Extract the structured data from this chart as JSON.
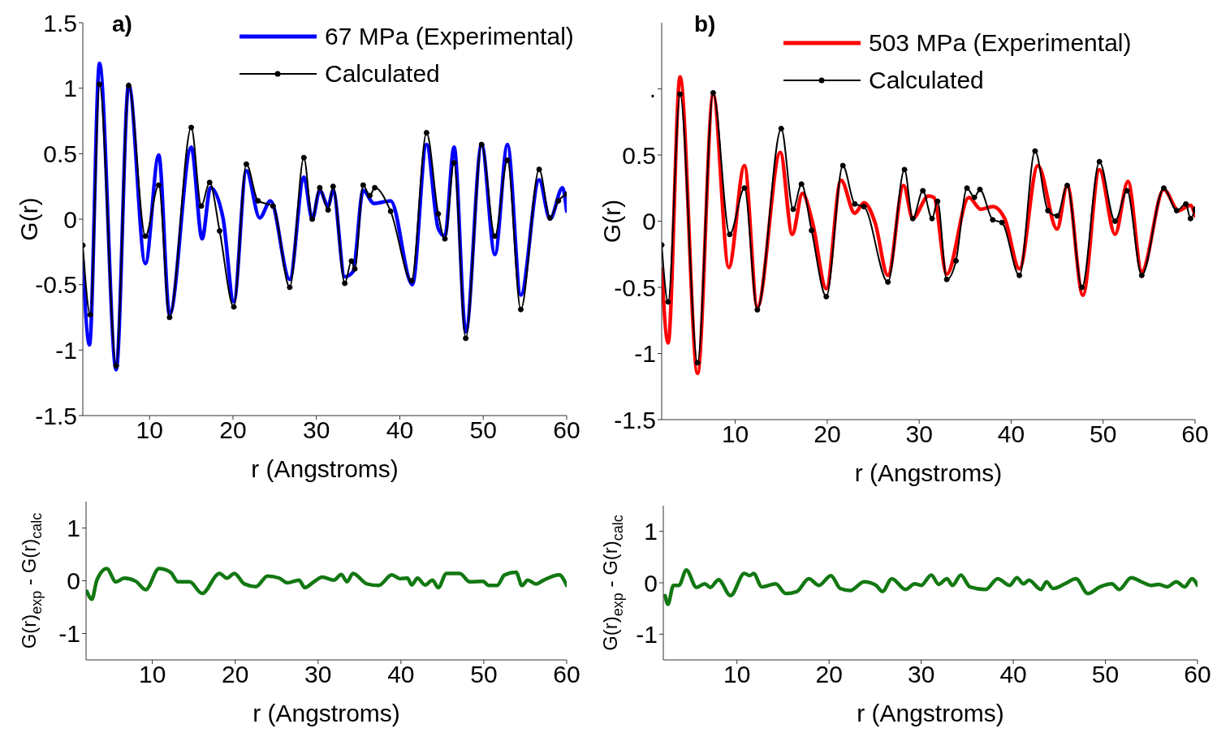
{
  "chart_data": [
    {
      "type": "line",
      "annotations": [
        "a)"
      ],
      "xlabel": "r (Angstroms)",
      "ylabel": "G(r)",
      "xlim": [
        2,
        60
      ],
      "xticks": [
        10,
        20,
        30,
        40,
        50,
        60
      ],
      "ylim": [
        -1.5,
        1.5
      ],
      "yticks": [
        -1.5,
        -1,
        -0.5,
        0,
        0.5,
        1,
        1.5
      ],
      "legend": "top right",
      "grid": false,
      "series": [
        {
          "name": "67 MPa (Experimental)",
          "color": "#0000ff",
          "marker": "none",
          "x": [
            2,
            2.8,
            4.0,
            6.0,
            7.5,
            9.5,
            11.1,
            12.4,
            15.0,
            16.3,
            17.3,
            18.8,
            20.1,
            21.6,
            23.2,
            24.5,
            26.8,
            28.5,
            29.5,
            30.4,
            31.4,
            32.0,
            33.4,
            34.4,
            35.6,
            36.9,
            38.9,
            41.5,
            43.2,
            44.6,
            45.4,
            46.5,
            47.9,
            49.8,
            51.4,
            52.9,
            54.5,
            56.7,
            58.0,
            59.5,
            60
          ],
          "values": [
            -0.32,
            -0.96,
            1.19,
            -1.15,
            1.03,
            -0.34,
            0.49,
            -0.73,
            0.55,
            -0.15,
            0.24,
            0.01,
            -0.63,
            0.37,
            0.01,
            0.14,
            -0.46,
            0.32,
            0.0,
            0.22,
            0.1,
            0.22,
            -0.44,
            -0.4,
            0.22,
            0.12,
            0.14,
            -0.5,
            0.57,
            -0.07,
            -0.13,
            0.55,
            -0.86,
            0.57,
            -0.27,
            0.57,
            -0.58,
            0.3,
            0.0,
            0.24,
            0.06
          ]
        },
        {
          "name": "Calculated",
          "color": "#000000",
          "marker": "circle",
          "x": [
            2,
            2.9,
            4.0,
            6.0,
            7.5,
            9.5,
            11.1,
            12.4,
            15.0,
            16.2,
            17.2,
            18.4,
            20.1,
            21.6,
            23.0,
            24.8,
            26.8,
            28.5,
            29.5,
            30.4,
            31.4,
            32.0,
            33.4,
            34.2,
            34.6,
            35.6,
            36.4,
            37.0,
            38.9,
            41.4,
            43.2,
            44.6,
            45.4,
            46.5,
            47.9,
            49.8,
            51.4,
            52.9,
            54.5,
            56.7,
            58.0,
            59.0,
            60
          ],
          "values": [
            -0.2,
            -0.73,
            1.03,
            -1.12,
            1.02,
            -0.13,
            0.26,
            -0.75,
            0.7,
            0.1,
            0.28,
            -0.09,
            -0.67,
            0.42,
            0.14,
            0.1,
            -0.52,
            0.47,
            0.0,
            0.24,
            0.07,
            0.25,
            -0.49,
            -0.32,
            -0.38,
            0.26,
            0.18,
            0.24,
            0.06,
            -0.47,
            0.66,
            0.04,
            -0.15,
            0.43,
            -0.91,
            0.57,
            -0.13,
            0.45,
            -0.69,
            0.38,
            0.01,
            0.14,
            0.19
          ]
        }
      ]
    },
    {
      "type": "line",
      "annotations": [
        "b)"
      ],
      "xlabel": "r (Angstroms)",
      "ylabel": "G(r)",
      "xlim": [
        2,
        60
      ],
      "xticks": [
        10,
        20,
        30,
        40,
        50,
        60
      ],
      "ylim": [
        -1.5,
        1.5
      ],
      "yticks": [
        -1.5,
        -1,
        -0.5,
        0,
        0.5,
        {
          "value": 1,
          "label": "."
        }
      ],
      "legend": "top right",
      "grid": false,
      "series": [
        {
          "name": "503 MPa (Experimental)",
          "color": "#ff0000",
          "marker": "none",
          "x": [
            2.0,
            2.7,
            4.0,
            5.9,
            7.6,
            9.3,
            11.0,
            12.4,
            14.9,
            16.2,
            17.3,
            18.4,
            19.9,
            21.5,
            23.0,
            24.0,
            25.2,
            26.6,
            28.3,
            29.3,
            31.0,
            31.6,
            33.0,
            35.4,
            36.7,
            38.0,
            39.3,
            40.9,
            42.9,
            45.0,
            46.1,
            47.8,
            49.6,
            51.3,
            52.7,
            54.2,
            56.6,
            58.2,
            59.5,
            60
          ],
          "values": [
            -0.36,
            -0.92,
            1.09,
            -1.15,
            0.96,
            -0.35,
            0.42,
            -0.65,
            0.52,
            -0.1,
            0.21,
            -0.01,
            -0.51,
            0.31,
            0.06,
            0.14,
            -0.01,
            -0.41,
            0.27,
            0.02,
            0.19,
            0.18,
            -0.4,
            0.18,
            0.09,
            0.11,
            0.02,
            -0.36,
            0.42,
            -0.06,
            0.27,
            -0.56,
            0.39,
            -0.1,
            0.3,
            -0.38,
            0.24,
            0.08,
            0.12,
            0.04
          ]
        },
        {
          "name": "Calculated",
          "color": "#000000",
          "marker": "circle",
          "x": [
            2.0,
            2.7,
            4.0,
            5.9,
            7.6,
            9.4,
            11.0,
            12.4,
            15.0,
            16.3,
            17.2,
            18.3,
            19.9,
            21.7,
            23.0,
            24.0,
            26.6,
            28.4,
            29.3,
            30.4,
            31.4,
            32.0,
            33.0,
            34.0,
            35.2,
            36.0,
            36.6,
            38.0,
            39.0,
            40.9,
            42.6,
            44.0,
            45.0,
            46.1,
            47.7,
            49.6,
            51.3,
            52.6,
            54.2,
            56.6,
            58.0,
            59.0,
            59.5,
            60
          ],
          "values": [
            -0.18,
            -0.61,
            0.96,
            -1.07,
            0.97,
            -0.1,
            0.25,
            -0.67,
            0.7,
            0.09,
            0.28,
            -0.07,
            -0.57,
            0.42,
            0.13,
            0.11,
            -0.46,
            0.39,
            0.02,
            0.23,
            0.02,
            0.15,
            -0.44,
            -0.3,
            0.25,
            0.18,
            0.24,
            0.01,
            -0.01,
            -0.41,
            0.53,
            0.08,
            0.04,
            0.27,
            -0.5,
            0.45,
            0.0,
            0.23,
            -0.41,
            0.25,
            0.08,
            0.13,
            0.02,
            0.09
          ]
        }
      ]
    },
    {
      "type": "line",
      "xlabel": "r (Angstroms)",
      "ylabel": "G(r)$_{exp}$ - G(r)$_{calc}$",
      "xlim": [
        2,
        60
      ],
      "xticks": [
        10,
        20,
        30,
        40,
        50,
        60
      ],
      "ylim": [
        -1.5,
        1.5
      ],
      "yticks": [
        -1,
        0,
        1
      ],
      "grid": false,
      "series": [
        {
          "color": "#127812",
          "marker": "none",
          "x": [
            2.1,
            2.7,
            3.3,
            4.5,
            5.6,
            6.6,
            8.0,
            9.2,
            10.8,
            12.2,
            13.1,
            14.5,
            16.0,
            18.1,
            19.0,
            19.9,
            21.1,
            22.5,
            23.9,
            25.3,
            26.3,
            27.7,
            28.4,
            29.5,
            30.5,
            31.9,
            32.8,
            33.5,
            34.2,
            35.9,
            37.3,
            38.9,
            39.9,
            40.8,
            41.3,
            42.0,
            42.9,
            43.8,
            44.5,
            45.5,
            47.1,
            48.3,
            49.9,
            50.6,
            51.6,
            52.5,
            53.9,
            54.6,
            55.3,
            56.3,
            57.2,
            59.1,
            60
          ],
          "values": [
            -0.2,
            -0.35,
            0.01,
            0.23,
            -0.02,
            0.05,
            -0.01,
            -0.17,
            0.23,
            0.16,
            -0.02,
            -0.02,
            -0.24,
            0.14,
            0.05,
            0.14,
            -0.06,
            -0.11,
            0.09,
            0.05,
            -0.04,
            0.01,
            -0.13,
            -0.02,
            0.07,
            0.01,
            0.12,
            -0.02,
            0.14,
            -0.06,
            -0.09,
            0.11,
            0.04,
            0.05,
            -0.08,
            0.05,
            -0.08,
            0.01,
            -0.13,
            0.14,
            0.14,
            -0.02,
            -0.01,
            -0.09,
            -0.09,
            0.11,
            0.16,
            -0.09,
            0.01,
            -0.06,
            0.01,
            0.11,
            -0.09
          ]
        }
      ]
    },
    {
      "type": "line",
      "xlabel": "r (Angstroms)",
      "ylabel": "G(r)$_{exp}$ - G(r)$_{calc}$",
      "xlim": [
        2,
        60
      ],
      "xticks": [
        10,
        20,
        30,
        40,
        50,
        60
      ],
      "ylim": [
        -1.5,
        1.5
      ],
      "yticks": [
        -1,
        0,
        1
      ],
      "grid": false,
      "series": [
        {
          "color": "#127812",
          "marker": "none",
          "x": [
            2.2,
            2.5,
            3.1,
            3.7,
            4.5,
            5.6,
            6.5,
            7.1,
            8.0,
            9.3,
            10.8,
            11.4,
            11.8,
            12.7,
            14.2,
            15.3,
            16.5,
            17.8,
            18.9,
            20.2,
            21.2,
            22.3,
            23.8,
            25.1,
            25.8,
            26.8,
            28.3,
            29.3,
            30.0,
            31.1,
            31.9,
            32.8,
            33.4,
            34.3,
            35.3,
            37.0,
            38.3,
            39.6,
            40.4,
            41.1,
            41.7,
            43.0,
            43.6,
            44.3,
            45.6,
            46.8,
            48.1,
            49.4,
            50.7,
            51.5,
            52.8,
            53.9,
            55.0,
            55.8,
            56.7,
            57.7,
            58.6,
            59.4,
            60
          ],
          "values": [
            -0.25,
            -0.42,
            -0.05,
            -0.05,
            0.25,
            -0.09,
            -0.02,
            -0.09,
            0.06,
            -0.25,
            0.18,
            0.14,
            0.18,
            -0.08,
            -0.02,
            -0.21,
            -0.17,
            0.08,
            -0.05,
            0.14,
            -0.11,
            -0.15,
            0.02,
            -0.05,
            -0.17,
            0.08,
            -0.13,
            -0.02,
            -0.05,
            0.15,
            -0.03,
            0.08,
            -0.05,
            0.15,
            -0.08,
            -0.13,
            0.08,
            -0.05,
            0.1,
            -0.02,
            0.05,
            -0.13,
            0.02,
            -0.11,
            -0.02,
            0.08,
            -0.21,
            -0.08,
            -0.02,
            -0.13,
            0.1,
            0.02,
            -0.05,
            -0.03,
            -0.08,
            0.02,
            -0.08,
            0.08,
            -0.05
          ]
        }
      ]
    }
  ]
}
